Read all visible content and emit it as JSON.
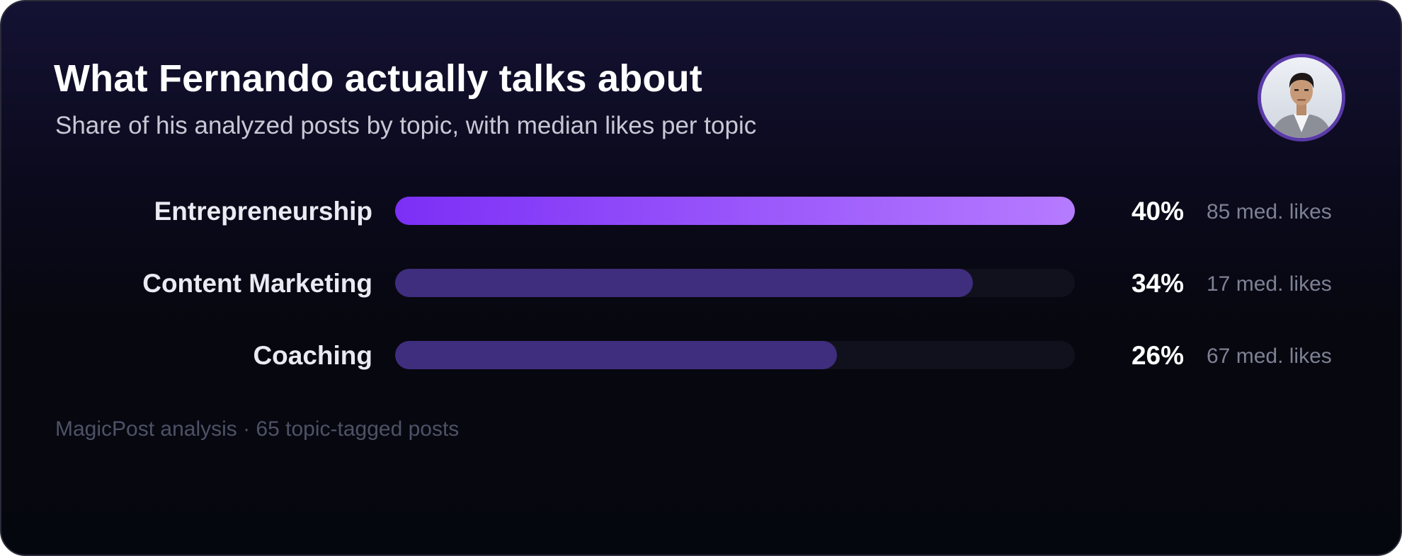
{
  "header": {
    "title": "What Fernando actually talks about",
    "subtitle": "Share of his analyzed posts by topic, with median likes per topic"
  },
  "avatar": {
    "icon": "person-photo-icon"
  },
  "footer": {
    "text": "MagicPost analysis · 65 topic-tagged posts"
  },
  "colors": {
    "highlight_start": "#7c2ff6",
    "highlight_end": "#b57bff",
    "bar": "#3f2d7e",
    "track": "#11111d",
    "label": "#e9eaf2",
    "muted": "#7d8194",
    "value": "#ffffff"
  },
  "chart_data": {
    "type": "bar",
    "orientation": "horizontal",
    "categories": [
      "Entrepreneurship",
      "Content Marketing",
      "Coaching"
    ],
    "values": [
      40,
      34,
      26
    ],
    "value_labels": [
      "40%",
      "34%",
      "26%"
    ],
    "secondary_labels": [
      "85 med. likes",
      "17 med. likes",
      "67 med. likes"
    ],
    "xlim": [
      0,
      40
    ],
    "highlighted_index": 0,
    "grid": false,
    "legend": "none"
  }
}
